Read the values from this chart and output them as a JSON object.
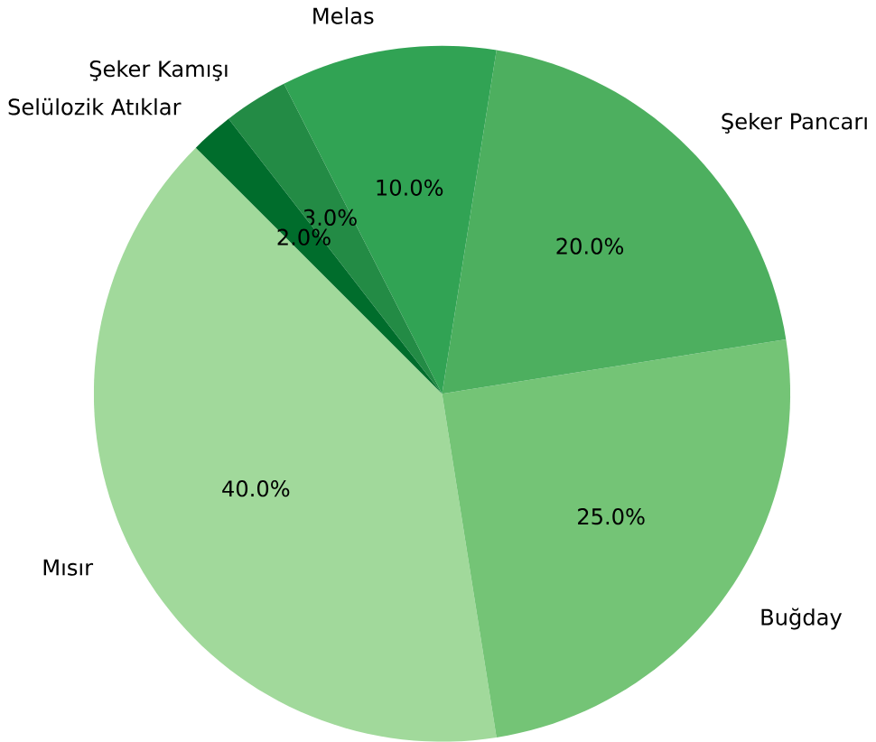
{
  "chart_data": {
    "type": "pie",
    "categories": [
      "Mısır",
      "Buğday",
      "Şeker Pancarı",
      "Melas",
      "Şeker Kamışı",
      "Selülozik Atıklar"
    ],
    "values": [
      40,
      25,
      20,
      10,
      3,
      2
    ],
    "value_labels": [
      "40.0%",
      "25.0%",
      "20.0%",
      "10.0%",
      "3.0%",
      "2.0%"
    ],
    "colors": [
      "#a1d99b",
      "#74c476",
      "#4daf5f",
      "#31a354",
      "#238b45",
      "#006d2c"
    ]
  }
}
